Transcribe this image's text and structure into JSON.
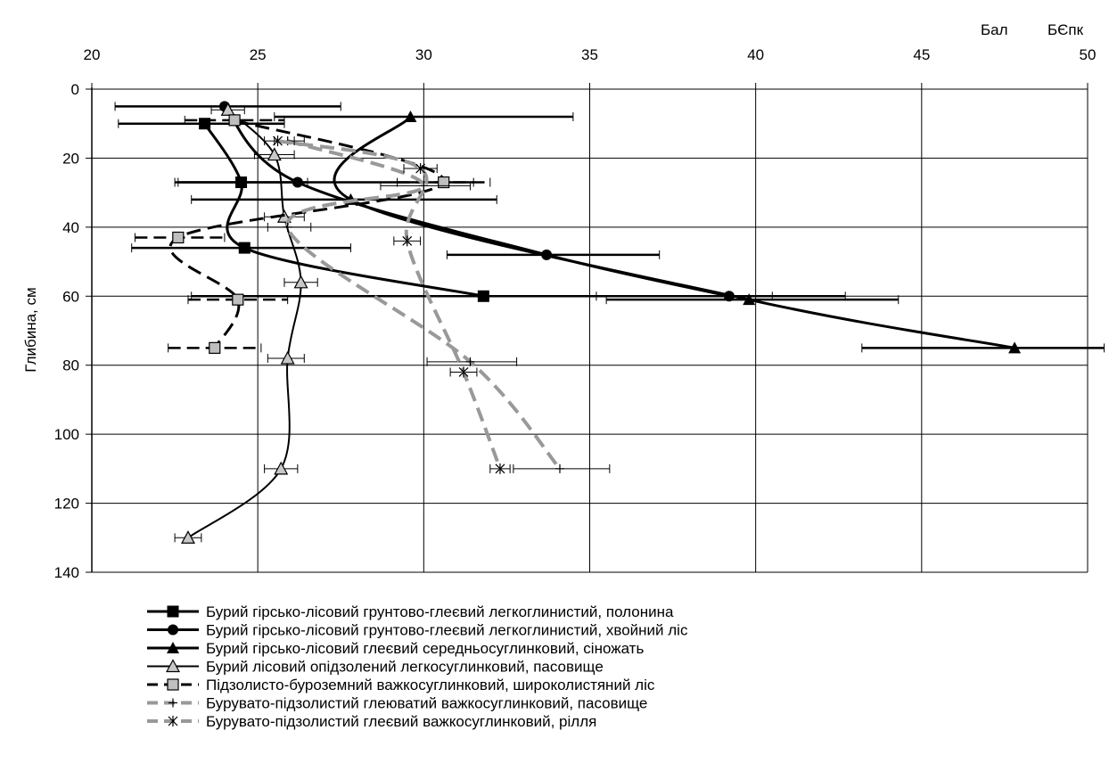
{
  "chart_data": {
    "type": "line",
    "orientation": "inverted-depth",
    "x_axis": {
      "position": "top",
      "range": [
        20,
        50
      ],
      "ticks": [
        20,
        25,
        30,
        35,
        40,
        45,
        50
      ],
      "label_unit": "Бал",
      "label_name": "БЄпк"
    },
    "y_axis": {
      "label": "Глибина, см",
      "range": [
        0,
        140
      ],
      "ticks": [
        0,
        20,
        40,
        60,
        80,
        100,
        120,
        140
      ],
      "inverted": true
    },
    "grid": {
      "vertical": true,
      "horizontal": true
    },
    "legend_position": "bottom",
    "series": [
      {
        "name": "Бурий гірсько-лісовий грунтово-глеєвий легкоглинистий, полонина",
        "color": "#000000",
        "dash": "solid",
        "width": 3,
        "marker": "square-filled",
        "points": [
          [
            23.4,
            10
          ],
          [
            24.5,
            27
          ],
          [
            24.6,
            46
          ],
          [
            31.8,
            60
          ]
        ],
        "err": [
          [
            20.8,
            25.8
          ],
          [
            22.6,
            26.5
          ],
          [
            21.2,
            27.8
          ],
          [
            23.0,
            40.5
          ]
        ]
      },
      {
        "name": "Бурий гірсько-лісовий грунтово-глеєвий  легкоглинистий, хвойний ліс",
        "color": "#000000",
        "dash": "solid",
        "width": 3,
        "marker": "circle-filled",
        "points": [
          [
            24.0,
            5
          ],
          [
            26.2,
            27
          ],
          [
            33.7,
            48
          ],
          [
            39.2,
            60
          ]
        ],
        "err": [
          [
            20.7,
            27.5
          ],
          [
            22.5,
            31.5
          ],
          [
            30.7,
            37.1
          ],
          [
            35.2,
            42.7
          ]
        ]
      },
      {
        "name": "Бурий гірсько-лісовий глеєвий середньосуглинковий, сіножать",
        "color": "#000000",
        "dash": "solid",
        "width": 3,
        "marker": "triangle-filled",
        "points": [
          [
            29.6,
            8
          ],
          [
            27.8,
            32
          ],
          [
            39.8,
            61
          ],
          [
            47.8,
            75
          ]
        ],
        "err": [
          [
            25.5,
            34.5
          ],
          [
            23.0,
            32.2
          ],
          [
            35.5,
            44.3
          ],
          [
            43.2,
            50.5
          ]
        ]
      },
      {
        "name": "Бурий лісовий опідзолений легкосуглинковий, пасовище",
        "color": "#000000",
        "dash": "solid",
        "width": 2,
        "marker": "triangle-open",
        "points": [
          [
            24.1,
            6
          ],
          [
            25.5,
            19
          ],
          [
            25.8,
            37
          ],
          [
            26.3,
            56
          ],
          [
            25.9,
            78
          ],
          [
            25.7,
            110
          ],
          [
            22.9,
            130
          ]
        ],
        "err": [
          [
            23.6,
            24.6
          ],
          [
            24.9,
            26.1
          ],
          [
            25.2,
            26.4
          ],
          [
            25.8,
            26.8
          ],
          [
            25.3,
            26.4
          ],
          [
            25.2,
            26.2
          ],
          [
            22.5,
            23.3
          ]
        ]
      },
      {
        "name": "Підзолисто-буроземний важкосуглинковий, широколистяний ліс",
        "color": "#000000",
        "dash": "dashed",
        "width": 3,
        "marker": "square-gray",
        "points": [
          [
            24.3,
            9
          ],
          [
            30.6,
            27
          ],
          [
            22.6,
            43
          ],
          [
            24.4,
            61
          ],
          [
            23.7,
            75
          ]
        ],
        "err": [
          [
            22.8,
            25.8
          ],
          [
            29.2,
            32.0
          ],
          [
            21.3,
            24.0
          ],
          [
            22.9,
            25.9
          ],
          [
            22.3,
            25.1
          ]
        ]
      },
      {
        "name": "Бурувато-підзолистий глеюватий важкосуглинковий, пасовище",
        "color": "#999999",
        "dash": "dashed",
        "width": 4,
        "marker": "plus",
        "points": [
          [
            25.9,
            15
          ],
          [
            30.0,
            28
          ],
          [
            25.9,
            40
          ],
          [
            31.4,
            79
          ],
          [
            34.1,
            110
          ]
        ],
        "err": [
          [
            25.5,
            26.4
          ],
          [
            28.7,
            31.4
          ],
          [
            25.3,
            26.6
          ],
          [
            30.1,
            32.8
          ],
          [
            32.7,
            35.6
          ]
        ]
      },
      {
        "name": "Бурувато-підзолистий глеєвий важкосуглинковий, рілля",
        "color": "#999999",
        "dash": "dashed",
        "width": 4,
        "marker": "asterisk",
        "points": [
          [
            25.6,
            15
          ],
          [
            29.9,
            23
          ],
          [
            29.5,
            44
          ],
          [
            31.2,
            82
          ],
          [
            32.3,
            110
          ]
        ],
        "err": [
          [
            25.2,
            26.1
          ],
          [
            29.4,
            30.4
          ],
          [
            29.1,
            29.9
          ],
          [
            30.8,
            31.6
          ],
          [
            32.0,
            32.6
          ]
        ]
      }
    ]
  }
}
